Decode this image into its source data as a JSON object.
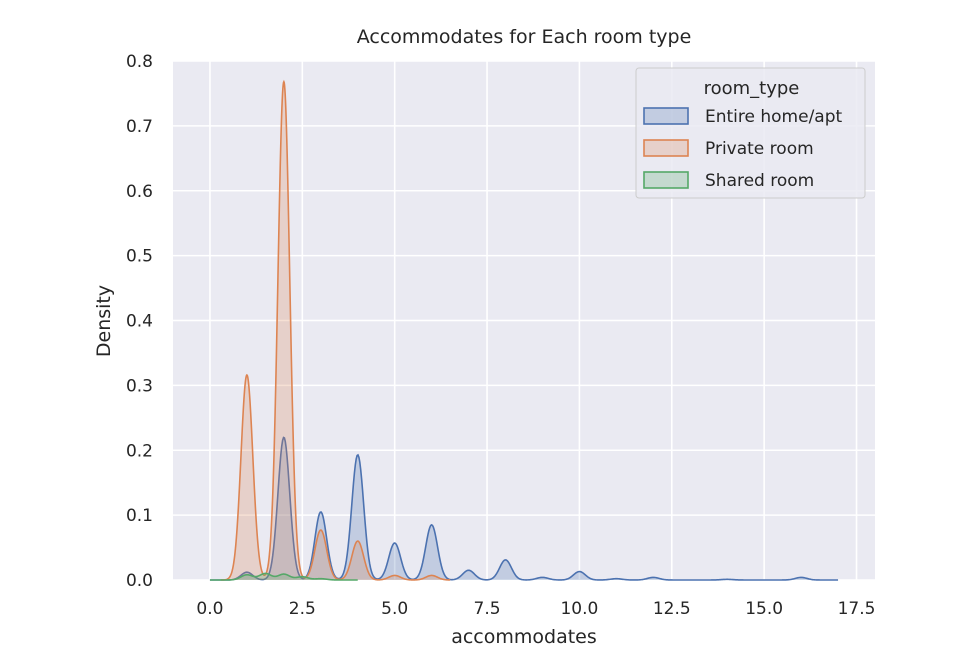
{
  "chart_data": {
    "type": "area",
    "title": "Accommodates for Each room type",
    "xlabel": "accommodates",
    "ylabel": "Density",
    "xlim": [
      -1.0,
      18.0
    ],
    "ylim": [
      0.0,
      0.8
    ],
    "xticks": [
      "0.0",
      "2.5",
      "5.0",
      "7.5",
      "10.0",
      "12.5",
      "15.0",
      "17.5"
    ],
    "xtick_values": [
      0.0,
      2.5,
      5.0,
      7.5,
      10.0,
      12.5,
      15.0,
      17.5
    ],
    "yticks": [
      "0.0",
      "0.1",
      "0.2",
      "0.3",
      "0.4",
      "0.5",
      "0.6",
      "0.7",
      "0.8"
    ],
    "ytick_values": [
      0.0,
      0.1,
      0.2,
      0.3,
      0.4,
      0.5,
      0.6,
      0.7,
      0.8
    ],
    "grid": true,
    "legend": {
      "title": "room_type",
      "position": "top-right"
    },
    "series": [
      {
        "name": "Entire home/apt",
        "color": "#4c72b0",
        "peaks": [
          [
            1,
            0.012
          ],
          [
            2,
            0.22
          ],
          [
            3,
            0.105
          ],
          [
            4,
            0.193
          ],
          [
            5,
            0.057
          ],
          [
            6,
            0.085
          ],
          [
            7,
            0.015
          ],
          [
            8,
            0.031
          ],
          [
            9,
            0.004
          ],
          [
            10,
            0.013
          ],
          [
            11,
            0.002
          ],
          [
            12,
            0.004
          ],
          [
            14,
            0.001
          ],
          [
            16,
            0.004
          ]
        ],
        "support": [
          0.0,
          17.0
        ]
      },
      {
        "name": "Private room",
        "color": "#dd8452",
        "peaks": [
          [
            1,
            0.316
          ],
          [
            2,
            0.768
          ],
          [
            3,
            0.077
          ],
          [
            4,
            0.06
          ],
          [
            5,
            0.007
          ],
          [
            6,
            0.007
          ]
        ],
        "support": [
          0.3,
          6.5
        ]
      },
      {
        "name": "Shared room",
        "color": "#55a868",
        "peaks": [
          [
            1,
            0.008
          ],
          [
            1.5,
            0.01
          ],
          [
            2,
            0.009
          ],
          [
            2.5,
            0.005
          ],
          [
            3,
            0.002
          ]
        ],
        "support": [
          0.0,
          4.0
        ]
      }
    ]
  }
}
